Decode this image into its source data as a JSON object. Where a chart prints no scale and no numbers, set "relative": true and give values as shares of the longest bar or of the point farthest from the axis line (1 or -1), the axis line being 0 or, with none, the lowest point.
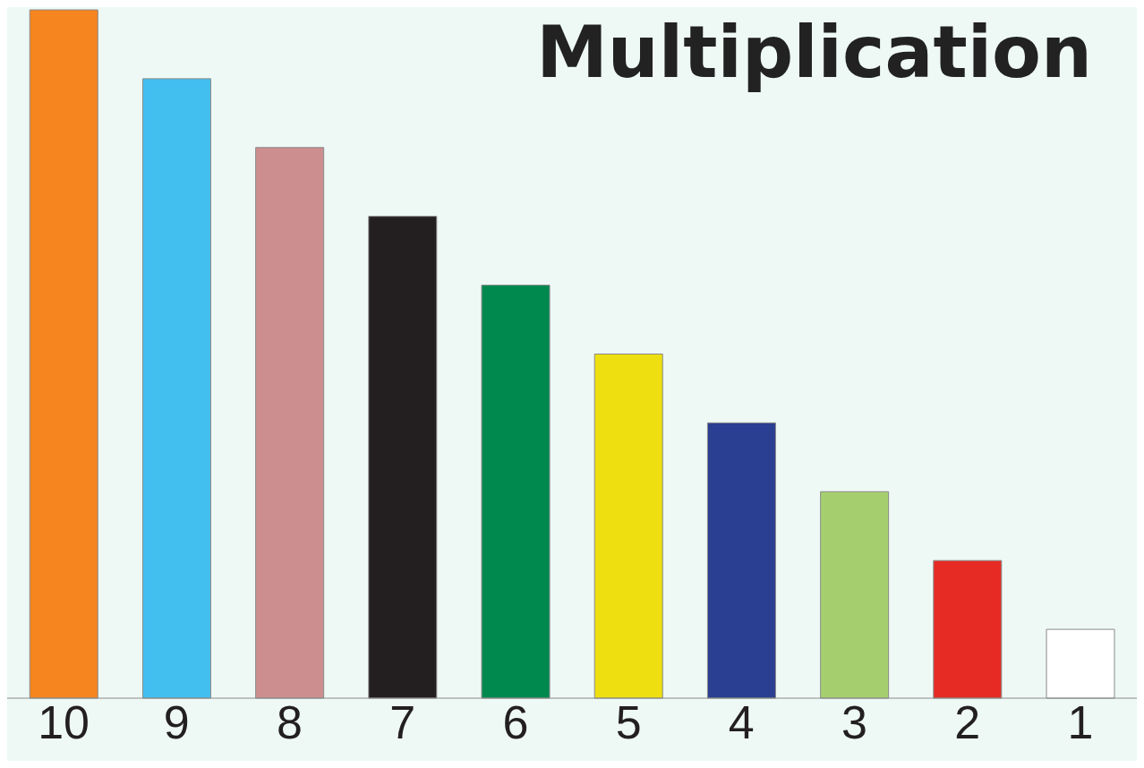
{
  "chart_data": {
    "type": "bar",
    "title": "Multiplication",
    "relative": true,
    "categories": [
      "10",
      "9",
      "8",
      "7",
      "6",
      "5",
      "4",
      "3",
      "2",
      "1"
    ],
    "values": [
      1,
      0.9,
      0.8,
      0.7,
      0.6,
      0.5,
      0.4,
      0.3,
      0.2,
      0.1
    ],
    "colors": [
      "#f6851f",
      "#42bfef",
      "#cd8e8f",
      "#231f20",
      "#00894f",
      "#eedf10",
      "#2a3f91",
      "#a5cf6e",
      "#e52b24",
      "#ffffff"
    ],
    "grid": false,
    "legend": false
  }
}
